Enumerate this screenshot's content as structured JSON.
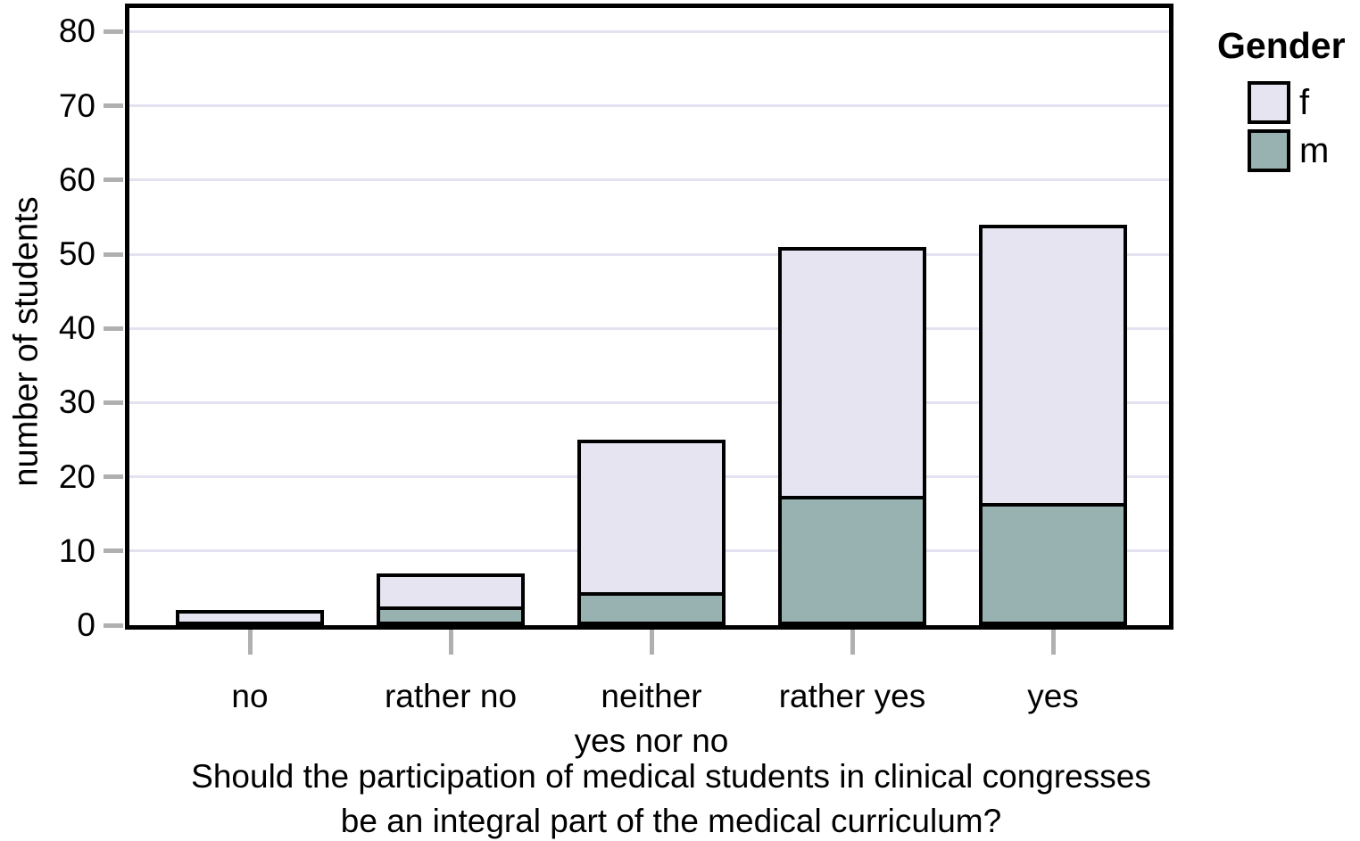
{
  "chart_data": {
    "type": "bar",
    "stacked": true,
    "ylabel": "number of students",
    "xlabel": "Should the participation of medical students in clinical congresses be an integral part of the medical curriculum?",
    "xlabel_lines": [
      "Should the participation of medical students in clinical congresses",
      "be an integral part of the medical curriculum?"
    ],
    "categories": [
      "no",
      "rather no",
      "neither\nyes nor no",
      "rather yes",
      "yes"
    ],
    "series": [
      {
        "name": "m",
        "color": "#98b1b1",
        "values": [
          0,
          2,
          4,
          17,
          16
        ]
      },
      {
        "name": "f",
        "color": "#e6e4f1",
        "values": [
          2,
          5,
          21,
          34,
          38
        ]
      }
    ],
    "stack_totals": [
      2,
      7,
      25,
      51,
      54
    ],
    "stack_order_bottom_to_top": [
      "m",
      "f"
    ],
    "yticks": [
      0,
      10,
      20,
      30,
      40,
      50,
      60,
      70,
      80
    ],
    "ylim": [
      0,
      83
    ],
    "grid": "horizontal",
    "legend": {
      "title": "Gender",
      "position": "right",
      "entries": [
        {
          "label": "f",
          "color": "#e6e4f1"
        },
        {
          "label": "m",
          "color": "#98b1b1"
        }
      ]
    },
    "colors": {
      "bar_border": "#000000",
      "axis_border": "#000000",
      "gridline": "#e4e2f1",
      "tick_mark": "#b0b0b0",
      "text": "#000000"
    }
  }
}
